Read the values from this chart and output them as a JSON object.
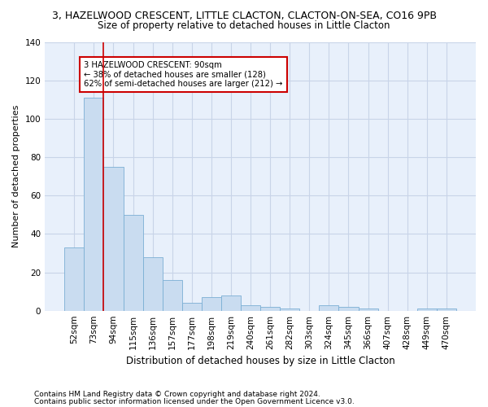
{
  "title": "3, HAZELWOOD CRESCENT, LITTLE CLACTON, CLACTON-ON-SEA, CO16 9PB",
  "subtitle": "Size of property relative to detached houses in Little Clacton",
  "xlabel": "Distribution of detached houses by size in Little Clacton",
  "ylabel": "Number of detached properties",
  "categories": [
    "52sqm",
    "73sqm",
    "94sqm",
    "115sqm",
    "136sqm",
    "157sqm",
    "177sqm",
    "198sqm",
    "219sqm",
    "240sqm",
    "261sqm",
    "282sqm",
    "303sqm",
    "324sqm",
    "345sqm",
    "366sqm",
    "407sqm",
    "428sqm",
    "449sqm",
    "470sqm"
  ],
  "values": [
    33,
    111,
    75,
    50,
    28,
    16,
    4,
    7,
    8,
    3,
    2,
    1,
    0,
    3,
    2,
    1,
    0,
    0,
    1,
    1
  ],
  "bar_color": "#c9dcf0",
  "bar_edge_color": "#7bafd4",
  "vline_color": "#cc0000",
  "vline_pos": 1.5,
  "ylim": [
    0,
    140
  ],
  "yticks": [
    0,
    20,
    40,
    60,
    80,
    100,
    120,
    140
  ],
  "annotation_text": "3 HAZELWOOD CRESCENT: 90sqm\n← 38% of detached houses are smaller (128)\n62% of semi-detached houses are larger (212) →",
  "annotation_box_facecolor": "#ffffff",
  "annotation_box_edgecolor": "#cc0000",
  "footnote1": "Contains HM Land Registry data © Crown copyright and database right 2024.",
  "footnote2": "Contains public sector information licensed under the Open Government Licence v3.0.",
  "bg_color": "#e8f0fb",
  "grid_color": "#c8d4e8",
  "title_fontsize": 9,
  "subtitle_fontsize": 8.5,
  "tick_fontsize": 7.5,
  "ylabel_fontsize": 8,
  "xlabel_fontsize": 8.5
}
